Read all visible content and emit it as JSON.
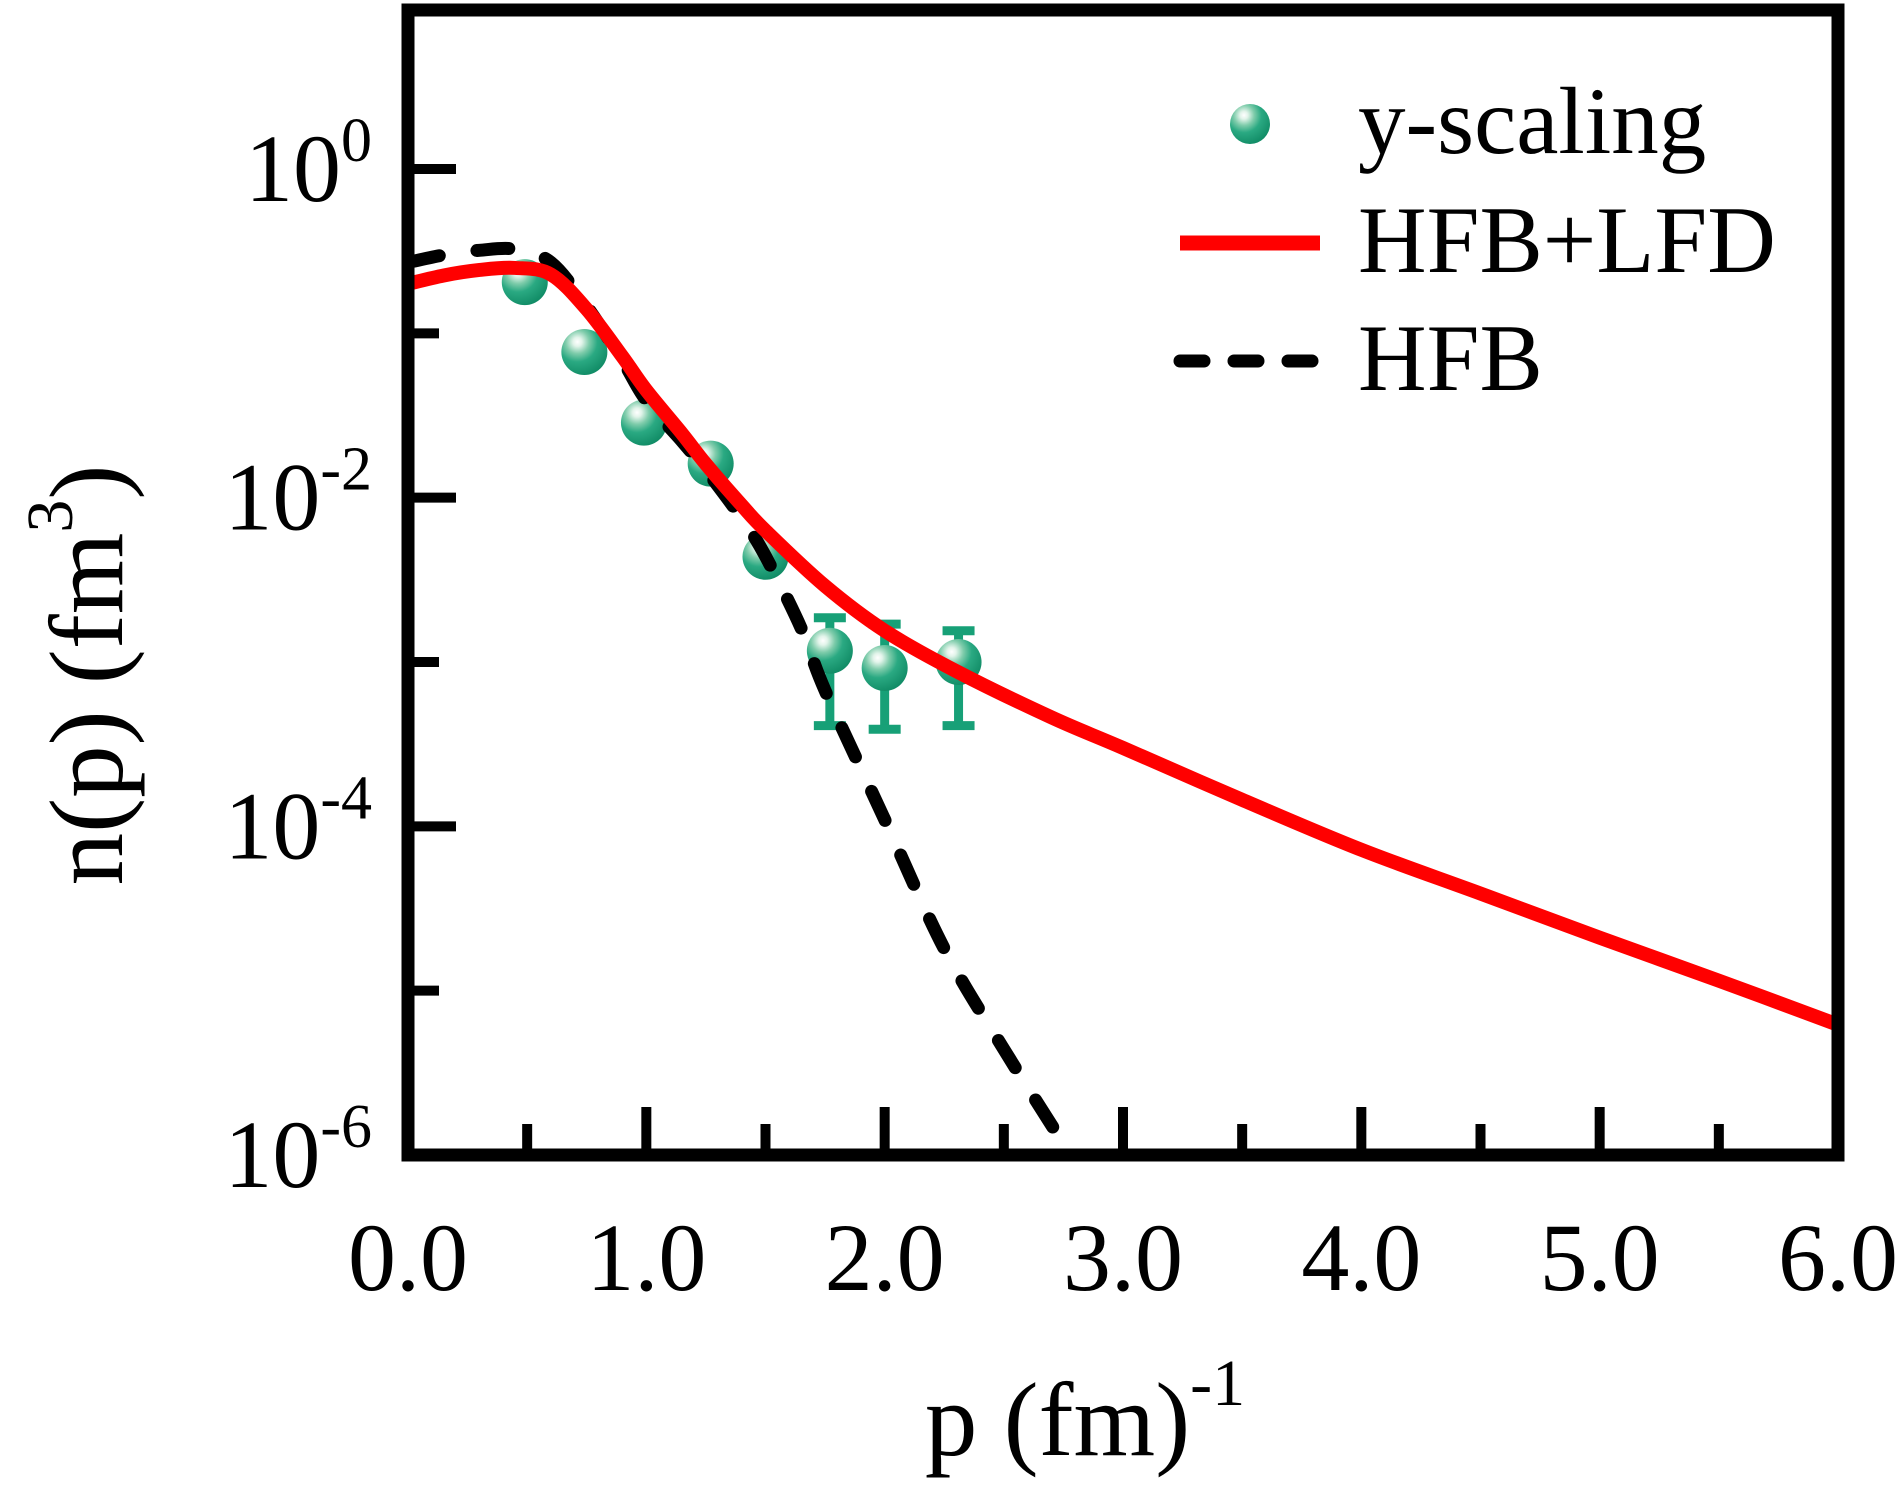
{
  "figure": {
    "background": "#ffffff",
    "axis_color": "#000000",
    "accent_red": "#FF0000",
    "accent_green": "#17A077"
  },
  "chart_data": {
    "type": "line",
    "title": "",
    "xlabel": {
      "base": "p (fm)",
      "sup": "-1"
    },
    "ylabel": {
      "pre": "n(p) (fm",
      "sup": "3",
      "post": ")"
    },
    "xlim": [
      0.0,
      6.0
    ],
    "ylim_log10": [
      -6,
      0.97
    ],
    "grid": false,
    "legend_position": "upper-right",
    "x_axis": {
      "scale": "linear",
      "major_ticks": [
        {
          "value": 0.0,
          "label": "0.0"
        },
        {
          "value": 1.0,
          "label": "1.0"
        },
        {
          "value": 2.0,
          "label": "2.0"
        },
        {
          "value": 3.0,
          "label": "3.0"
        },
        {
          "value": 4.0,
          "label": "4.0"
        },
        {
          "value": 5.0,
          "label": "5.0"
        },
        {
          "value": 6.0,
          "label": "6.0"
        }
      ],
      "minor_ticks": [
        0.5,
        1.5,
        2.5,
        3.5,
        4.5,
        5.5
      ]
    },
    "y_axis": {
      "scale": "log",
      "major_ticks": [
        {
          "exponent": 0,
          "base": "10",
          "sup": "0"
        },
        {
          "exponent": -2,
          "base": "10",
          "sup": "-2"
        },
        {
          "exponent": -4,
          "base": "10",
          "sup": "-4"
        },
        {
          "exponent": -6,
          "base": "10",
          "sup": "-6"
        }
      ],
      "minor_ticks": [
        -1,
        -3,
        -5
      ]
    },
    "series": [
      {
        "name": "y-scaling",
        "type": "scatter",
        "marker": "sphere",
        "color": "#17A077",
        "points": [
          {
            "p": 0.49,
            "n": 0.205
          },
          {
            "p": 0.74,
            "n": 0.077
          },
          {
            "p": 0.99,
            "n": 0.0286
          },
          {
            "p": 1.27,
            "n": 0.0161
          },
          {
            "p": 1.5,
            "n": 0.00437
          },
          {
            "p": 1.77,
            "n": 0.00117,
            "err_lo": 0.00041,
            "err_hi": 0.00186
          },
          {
            "p": 2.0,
            "n": 0.00092,
            "err_lo": 0.00039,
            "err_hi": 0.0017
          },
          {
            "p": 2.31,
            "n": 0.001,
            "err_lo": 0.00041,
            "err_hi": 0.00155
          }
        ]
      },
      {
        "name": "HFB+LFD",
        "type": "line",
        "style": "solid",
        "color": "#FF0000",
        "points": [
          [
            0.0,
            0.2
          ],
          [
            0.15,
            0.225
          ],
          [
            0.3,
            0.243
          ],
          [
            0.45,
            0.25
          ],
          [
            0.6,
            0.228
          ],
          [
            0.75,
            0.14
          ],
          [
            0.9,
            0.072
          ],
          [
            1.0,
            0.045
          ],
          [
            1.15,
            0.0245
          ],
          [
            1.25,
            0.016
          ],
          [
            1.4,
            0.009
          ],
          [
            1.5,
            0.0063
          ],
          [
            1.75,
            0.0029
          ],
          [
            2.0,
            0.00155
          ],
          [
            2.3,
            0.00088
          ],
          [
            2.7,
            0.00046
          ],
          [
            3.0,
            0.0003
          ],
          [
            3.5,
            0.000145
          ],
          [
            4.0,
            7.2e-05
          ],
          [
            4.5,
            3.9e-05
          ],
          [
            5.0,
            2.1e-05
          ],
          [
            5.5,
            1.15e-05
          ],
          [
            6.0,
            6.2e-06
          ]
        ]
      },
      {
        "name": "HFB",
        "type": "line",
        "style": "dashed",
        "color": "#000000",
        "points": [
          [
            0.0,
            0.27
          ],
          [
            0.15,
            0.3
          ],
          [
            0.3,
            0.32
          ],
          [
            0.45,
            0.325
          ],
          [
            0.6,
            0.27
          ],
          [
            0.75,
            0.146
          ],
          [
            0.9,
            0.068
          ],
          [
            1.0,
            0.039
          ],
          [
            1.15,
            0.022
          ],
          [
            1.25,
            0.0147
          ],
          [
            1.4,
            0.0075
          ],
          [
            1.5,
            0.0044
          ],
          [
            1.65,
            0.0016
          ],
          [
            1.75,
            0.00067
          ],
          [
            2.0,
            0.00011
          ],
          [
            2.25,
            1.8e-05
          ],
          [
            2.5,
            4.4e-06
          ],
          [
            2.78,
            1e-06
          ]
        ]
      }
    ]
  }
}
